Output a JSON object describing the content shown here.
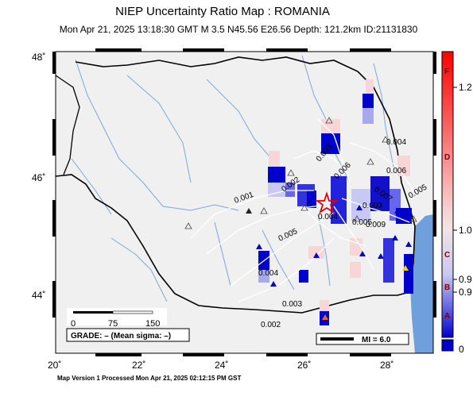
{
  "title": "NIEP Uncertainty Ratio Map : ROMANIA",
  "subtitle": "Mon Apr 21, 2025 13:18:30 GMT   M 3.5    N45.56 E26.56   Depth: 121.2km   ID:21131830",
  "footer": "Map Version 1 Processed Mon Apr 21, 2025 02:12:15 PM GST",
  "map": {
    "lon_ticks": [
      "20˚",
      "22˚",
      "24˚",
      "26˚",
      "28˚"
    ],
    "lat_ticks": [
      "48˚",
      "46˚",
      "44˚"
    ],
    "epicenter": {
      "lat": 45.56,
      "lon": 26.56
    },
    "contours": [
      "0.001",
      "0.002",
      "0.003",
      "0.004",
      "0.005",
      "0.006",
      "0.003",
      "0.006",
      "0.007",
      "0.009",
      "0.005",
      "0.004",
      "0.003",
      "0.002",
      "0.004",
      "0.005"
    ],
    "scalebar": {
      "labels": [
        "0",
        "75",
        "150"
      ]
    },
    "grade_label": "GRADE: – (Mean sigma: –)",
    "mi_label": "MI = 6.0"
  },
  "colorbar": {
    "letters": [
      "F",
      "D",
      "C",
      "B",
      "A"
    ],
    "values": [
      "1.2",
      "1.0",
      "0.9",
      "0.9",
      "0"
    ]
  }
}
